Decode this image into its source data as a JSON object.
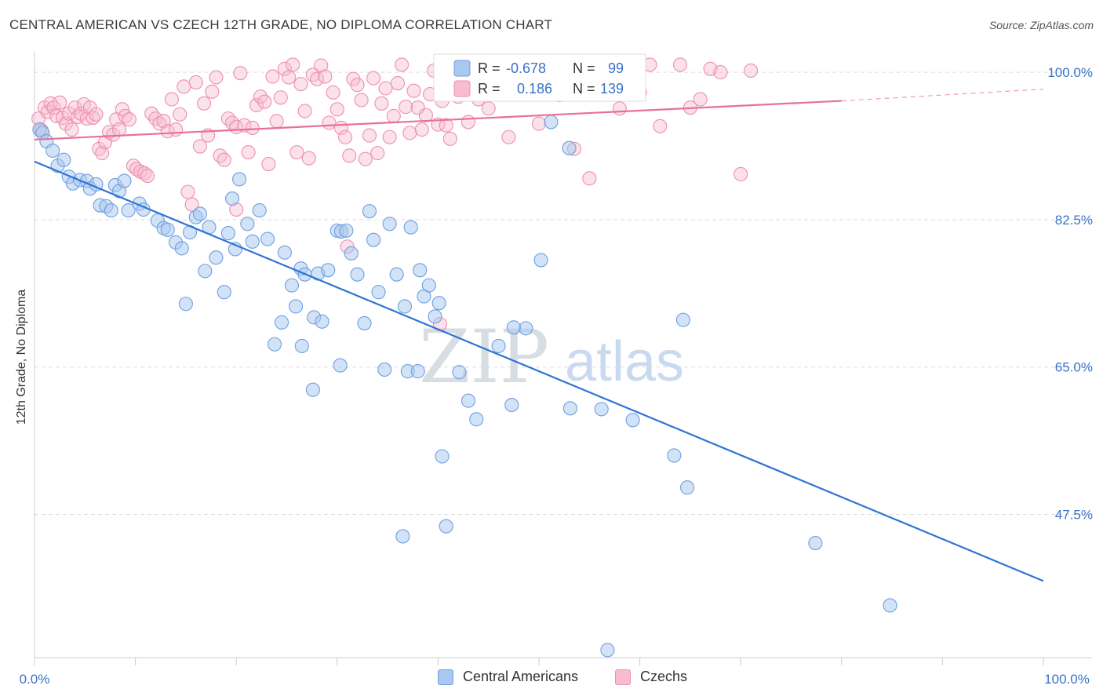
{
  "title": "CENTRAL AMERICAN VS CZECH 12TH GRADE, NO DIPLOMA CORRELATION CHART",
  "source": "Source: ZipAtlas.com",
  "watermark": {
    "zip": "ZIP",
    "atlas": "atlas"
  },
  "colors": {
    "blue_fill": "#a8c8f0",
    "blue_stroke": "#6e9fe0",
    "blue_line": "#2f74d6",
    "pink_fill": "#f7bcd0",
    "pink_stroke": "#ee8fae",
    "pink_line": "#e8709a",
    "axis_value": "#3a72c9",
    "grid": "#dddddd"
  },
  "legend_top": {
    "rows": [
      {
        "r_label": "R =",
        "r_value": "-0.678",
        "n_label": "N =",
        "n_value": "99"
      },
      {
        "r_label": "R =",
        "r_value": "0.186",
        "n_label": "N =",
        "n_value": "139"
      }
    ]
  },
  "legend_bottom": [
    "Central Americans",
    "Czechs"
  ],
  "chart_data": {
    "type": "scatter",
    "ylabel": "12th Grade, No Diploma",
    "xlim": [
      0,
      100
    ],
    "ylim": [
      30.5,
      101.5
    ],
    "x_tick_labels": [
      "0.0%",
      "100.0%"
    ],
    "y_ticks": [
      47.5,
      65.0,
      82.5,
      100.0
    ],
    "y_tick_labels": [
      "47.5%",
      "65.0%",
      "82.5%",
      "100.0%"
    ],
    "grid": true,
    "legend_placement": "top-center",
    "series": [
      {
        "name": "Central Americans",
        "r": -0.678,
        "n": 99,
        "trend": {
          "x": [
            0,
            100
          ],
          "y": [
            89.4,
            39.6
          ]
        },
        "points": [
          [
            0.5,
            93.2
          ],
          [
            0.8,
            92.8
          ],
          [
            1.2,
            91.8
          ],
          [
            1.8,
            90.7
          ],
          [
            2.3,
            88.9
          ],
          [
            2.9,
            89.6
          ],
          [
            3.4,
            87.6
          ],
          [
            3.8,
            86.8
          ],
          [
            4.5,
            87.2
          ],
          [
            5.2,
            87.1
          ],
          [
            5.5,
            86.2
          ],
          [
            6.1,
            86.7
          ],
          [
            6.5,
            84.2
          ],
          [
            7.1,
            84.1
          ],
          [
            7.6,
            83.6
          ],
          [
            8.0,
            86.6
          ],
          [
            8.4,
            85.9
          ],
          [
            8.9,
            87.1
          ],
          [
            9.3,
            83.6
          ],
          [
            10.4,
            84.4
          ],
          [
            10.8,
            83.7
          ],
          [
            12.2,
            82.4
          ],
          [
            12.8,
            81.5
          ],
          [
            13.2,
            81.3
          ],
          [
            14.0,
            79.8
          ],
          [
            14.6,
            79.1
          ],
          [
            15.0,
            72.5
          ],
          [
            15.4,
            81.0
          ],
          [
            16.0,
            82.8
          ],
          [
            16.4,
            83.2
          ],
          [
            16.9,
            76.4
          ],
          [
            17.3,
            81.6
          ],
          [
            18.0,
            78.0
          ],
          [
            18.8,
            73.9
          ],
          [
            19.2,
            80.9
          ],
          [
            19.6,
            85.0
          ],
          [
            19.9,
            79.0
          ],
          [
            20.3,
            87.3
          ],
          [
            21.1,
            82.0
          ],
          [
            21.6,
            79.9
          ],
          [
            22.3,
            83.6
          ],
          [
            23.1,
            80.2
          ],
          [
            24.5,
            70.3
          ],
          [
            24.8,
            78.6
          ],
          [
            25.5,
            74.7
          ],
          [
            25.9,
            72.2
          ],
          [
            26.4,
            76.7
          ],
          [
            26.8,
            76.0
          ],
          [
            27.7,
            70.9
          ],
          [
            28.1,
            76.1
          ],
          [
            28.5,
            70.4
          ],
          [
            29.1,
            76.5
          ],
          [
            30.0,
            81.2
          ],
          [
            30.4,
            81.1
          ],
          [
            30.9,
            81.2
          ],
          [
            31.4,
            78.5
          ],
          [
            32.0,
            76.0
          ],
          [
            32.7,
            70.2
          ],
          [
            33.2,
            83.5
          ],
          [
            33.6,
            80.1
          ],
          [
            34.1,
            73.9
          ],
          [
            35.2,
            82.0
          ],
          [
            35.9,
            76.0
          ],
          [
            36.7,
            72.2
          ],
          [
            37.3,
            81.6
          ],
          [
            38.2,
            76.5
          ],
          [
            38.6,
            73.4
          ],
          [
            39.1,
            74.7
          ],
          [
            39.7,
            71.0
          ],
          [
            40.1,
            72.6
          ],
          [
            26.5,
            67.5
          ],
          [
            23.8,
            67.7
          ],
          [
            30.3,
            65.2
          ],
          [
            34.7,
            64.7
          ],
          [
            27.6,
            62.3
          ],
          [
            37.0,
            64.5
          ],
          [
            38.0,
            64.5
          ],
          [
            42.1,
            64.4
          ],
          [
            46.0,
            67.5
          ],
          [
            48.7,
            69.6
          ],
          [
            47.5,
            69.7
          ],
          [
            53.1,
            60.1
          ],
          [
            56.2,
            60.0
          ],
          [
            59.3,
            58.7
          ],
          [
            43.0,
            61.0
          ],
          [
            40.4,
            54.4
          ],
          [
            63.4,
            54.5
          ],
          [
            64.7,
            50.7
          ],
          [
            47.3,
            60.5
          ],
          [
            50.2,
            77.7
          ],
          [
            51.2,
            94.1
          ],
          [
            64.3,
            70.6
          ],
          [
            43.8,
            58.8
          ],
          [
            40.8,
            46.1
          ],
          [
            36.5,
            44.9
          ],
          [
            77.4,
            44.1
          ],
          [
            84.8,
            36.7
          ],
          [
            56.8,
            31.4
          ],
          [
            53.0,
            91.0
          ]
        ]
      },
      {
        "name": "Czechs",
        "r": 0.186,
        "n": 139,
        "trend": {
          "x": [
            0,
            80
          ],
          "y": [
            92.0,
            96.6
          ]
        },
        "trend_dashed_to": {
          "x": [
            80,
            100
          ],
          "y": [
            96.6,
            98.0
          ]
        },
        "points": [
          [
            0.4,
            94.5
          ],
          [
            0.7,
            93.1
          ],
          [
            1.0,
            95.8
          ],
          [
            1.3,
            95.3
          ],
          [
            1.6,
            96.3
          ],
          [
            1.9,
            95.8
          ],
          [
            2.2,
            94.8
          ],
          [
            2.5,
            96.4
          ],
          [
            2.8,
            94.6
          ],
          [
            3.1,
            93.9
          ],
          [
            3.4,
            95.1
          ],
          [
            3.7,
            93.2
          ],
          [
            4.0,
            95.8
          ],
          [
            4.3,
            94.7
          ],
          [
            4.6,
            95.1
          ],
          [
            4.9,
            96.2
          ],
          [
            5.2,
            94.5
          ],
          [
            5.5,
            95.8
          ],
          [
            5.8,
            94.6
          ],
          [
            6.1,
            95.0
          ],
          [
            6.4,
            90.9
          ],
          [
            6.7,
            90.4
          ],
          [
            7.0,
            91.7
          ],
          [
            7.4,
            92.9
          ],
          [
            7.8,
            92.6
          ],
          [
            8.1,
            94.4
          ],
          [
            8.4,
            93.2
          ],
          [
            8.7,
            95.6
          ],
          [
            9.0,
            94.8
          ],
          [
            9.4,
            94.4
          ],
          [
            9.8,
            88.9
          ],
          [
            10.1,
            88.5
          ],
          [
            10.5,
            88.2
          ],
          [
            10.9,
            88.0
          ],
          [
            11.2,
            87.7
          ],
          [
            11.6,
            95.1
          ],
          [
            12.0,
            94.5
          ],
          [
            12.4,
            93.9
          ],
          [
            12.8,
            94.2
          ],
          [
            13.2,
            93.0
          ],
          [
            13.6,
            96.8
          ],
          [
            14.0,
            93.2
          ],
          [
            14.4,
            95.0
          ],
          [
            14.8,
            98.3
          ],
          [
            15.2,
            85.8
          ],
          [
            15.6,
            84.3
          ],
          [
            16.0,
            98.8
          ],
          [
            16.4,
            91.2
          ],
          [
            16.8,
            96.3
          ],
          [
            17.2,
            92.5
          ],
          [
            17.6,
            97.7
          ],
          [
            18.0,
            99.4
          ],
          [
            18.4,
            90.1
          ],
          [
            18.8,
            89.6
          ],
          [
            19.2,
            94.5
          ],
          [
            19.6,
            94.0
          ],
          [
            20.0,
            93.5
          ],
          [
            20.4,
            99.9
          ],
          [
            20.8,
            93.7
          ],
          [
            21.2,
            90.5
          ],
          [
            21.6,
            93.4
          ],
          [
            22.0,
            96.1
          ],
          [
            22.4,
            97.1
          ],
          [
            22.8,
            96.5
          ],
          [
            23.2,
            89.1
          ],
          [
            23.6,
            99.5
          ],
          [
            24.0,
            94.2
          ],
          [
            24.4,
            97.0
          ],
          [
            24.8,
            100.4
          ],
          [
            25.2,
            99.4
          ],
          [
            25.6,
            100.9
          ],
          [
            26.0,
            90.5
          ],
          [
            26.4,
            98.6
          ],
          [
            26.8,
            95.4
          ],
          [
            27.2,
            89.8
          ],
          [
            27.6,
            99.7
          ],
          [
            28.0,
            99.2
          ],
          [
            28.4,
            100.8
          ],
          [
            28.8,
            99.5
          ],
          [
            29.2,
            94.0
          ],
          [
            29.6,
            97.6
          ],
          [
            30.0,
            95.6
          ],
          [
            30.4,
            93.4
          ],
          [
            30.8,
            92.3
          ],
          [
            31.2,
            90.1
          ],
          [
            31.6,
            99.2
          ],
          [
            32.0,
            98.5
          ],
          [
            32.4,
            96.7
          ],
          [
            32.8,
            89.7
          ],
          [
            33.2,
            92.5
          ],
          [
            33.6,
            99.3
          ],
          [
            34.0,
            90.4
          ],
          [
            34.4,
            96.3
          ],
          [
            34.8,
            98.1
          ],
          [
            35.2,
            92.3
          ],
          [
            35.6,
            94.8
          ],
          [
            36.0,
            98.7
          ],
          [
            36.4,
            100.9
          ],
          [
            36.8,
            95.9
          ],
          [
            37.2,
            92.8
          ],
          [
            37.6,
            97.8
          ],
          [
            38.0,
            95.8
          ],
          [
            38.4,
            93.2
          ],
          [
            38.8,
            94.9
          ],
          [
            39.2,
            97.4
          ],
          [
            39.6,
            100.2
          ],
          [
            40.0,
            93.8
          ],
          [
            40.4,
            96.6
          ],
          [
            40.8,
            93.7
          ],
          [
            41.2,
            92.1
          ],
          [
            41.6,
            99.3
          ],
          [
            42.0,
            97.1
          ],
          [
            43.0,
            94.1
          ],
          [
            44.0,
            96.8
          ],
          [
            45.0,
            95.7
          ],
          [
            46.0,
            100.3
          ],
          [
            47.0,
            92.3
          ],
          [
            48.0,
            97.5
          ],
          [
            49.0,
            99.7
          ],
          [
            50.0,
            93.9
          ],
          [
            52.0,
            97.3
          ],
          [
            53.5,
            90.9
          ],
          [
            55.0,
            87.4
          ],
          [
            56.0,
            98.0
          ],
          [
            57.0,
            100.1
          ],
          [
            58.0,
            95.7
          ],
          [
            60.0,
            97.6
          ],
          [
            61.0,
            100.9
          ],
          [
            62.0,
            93.6
          ],
          [
            64.0,
            100.9
          ],
          [
            65.0,
            95.8
          ],
          [
            66.0,
            96.8
          ],
          [
            67.0,
            100.4
          ],
          [
            68.0,
            100.0
          ],
          [
            70.0,
            87.9
          ],
          [
            71.0,
            100.2
          ],
          [
            20.0,
            83.7
          ],
          [
            31.0,
            79.3
          ],
          [
            40.2,
            70.1
          ]
        ]
      }
    ]
  }
}
